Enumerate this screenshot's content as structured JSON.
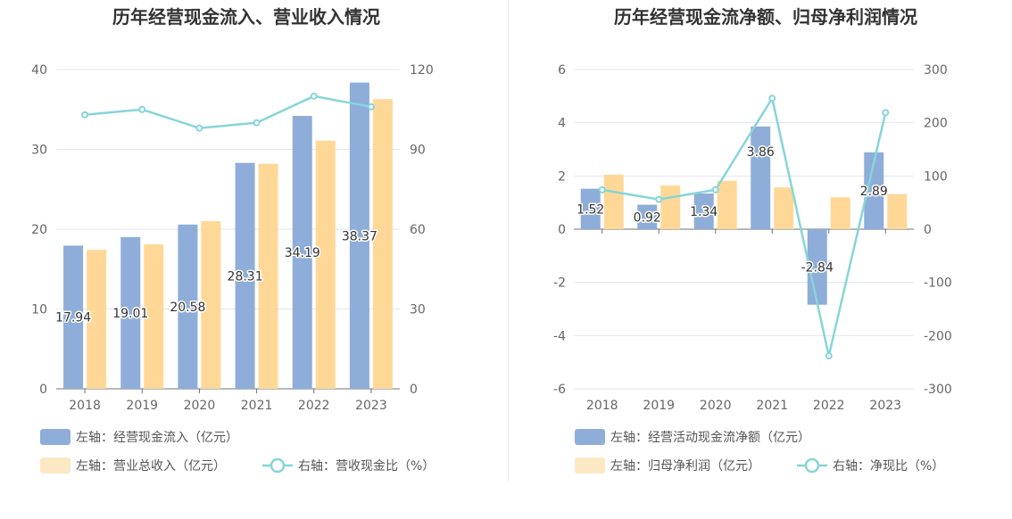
{
  "colors": {
    "bar_primary": "#8eadd9",
    "bar_secondary": "#ffd898",
    "legend_secondary": "#fde8c4",
    "line": "#86d5d8",
    "grid": "#e3e6ef",
    "divider": "#e8e8e8"
  },
  "chart_data": [
    {
      "type": "bar",
      "title": "历年经营现金流入、营业收入情况",
      "categories": [
        "2018",
        "2019",
        "2020",
        "2021",
        "2022",
        "2023"
      ],
      "y_left": {
        "min": 0,
        "max": 40,
        "ticks": [
          "0",
          "10",
          "20",
          "30",
          "40"
        ]
      },
      "y_right": {
        "min": 0,
        "max": 120,
        "ticks": [
          "0",
          "30",
          "60",
          "90",
          "120"
        ]
      },
      "series": [
        {
          "name": "左轴：经营现金流入（亿元）",
          "type": "bar",
          "axis": "left",
          "values": [
            17.94,
            19.01,
            20.58,
            28.31,
            34.19,
            38.37
          ],
          "labels": [
            "17.94",
            "19.01",
            "20.58",
            "28.31",
            "34.19",
            "38.37"
          ]
        },
        {
          "name": "左轴：营业总收入（亿元）",
          "type": "bar",
          "axis": "left",
          "values": [
            17.4,
            18.1,
            21.0,
            28.2,
            31.1,
            36.3
          ]
        },
        {
          "name": "右轴：营收现金比（%）",
          "type": "line",
          "axis": "right",
          "values": [
            103,
            105,
            98,
            100,
            110,
            106
          ]
        }
      ],
      "legend": "bottom-left"
    },
    {
      "type": "bar",
      "title": "历年经营现金流净额、归母净利润情况",
      "categories": [
        "2018",
        "2019",
        "2020",
        "2021",
        "2022",
        "2023"
      ],
      "y_left": {
        "min": -6,
        "max": 6,
        "ticks": [
          "-6",
          "-4",
          "-2",
          "0",
          "2",
          "4",
          "6"
        ]
      },
      "y_right": {
        "min": -300,
        "max": 300,
        "ticks": [
          "-300",
          "-200",
          "-100",
          "0",
          "100",
          "200",
          "300"
        ]
      },
      "series": [
        {
          "name": "左轴：经营活动现金流净额（亿元）",
          "type": "bar",
          "axis": "left",
          "values": [
            1.52,
            0.92,
            1.34,
            3.86,
            -2.84,
            2.89
          ],
          "labels": [
            "1.52",
            "0.92",
            "1.34",
            "3.86",
            "-2.84",
            "2.89"
          ]
        },
        {
          "name": "左轴：归母净利润（亿元）",
          "type": "bar",
          "axis": "left",
          "values": [
            2.05,
            1.64,
            1.82,
            1.57,
            1.2,
            1.32
          ]
        },
        {
          "name": "右轴：净现比（%）",
          "type": "line",
          "axis": "right",
          "values": [
            74,
            56,
            74,
            246,
            -238,
            219
          ]
        }
      ],
      "legend": "bottom-left"
    }
  ]
}
